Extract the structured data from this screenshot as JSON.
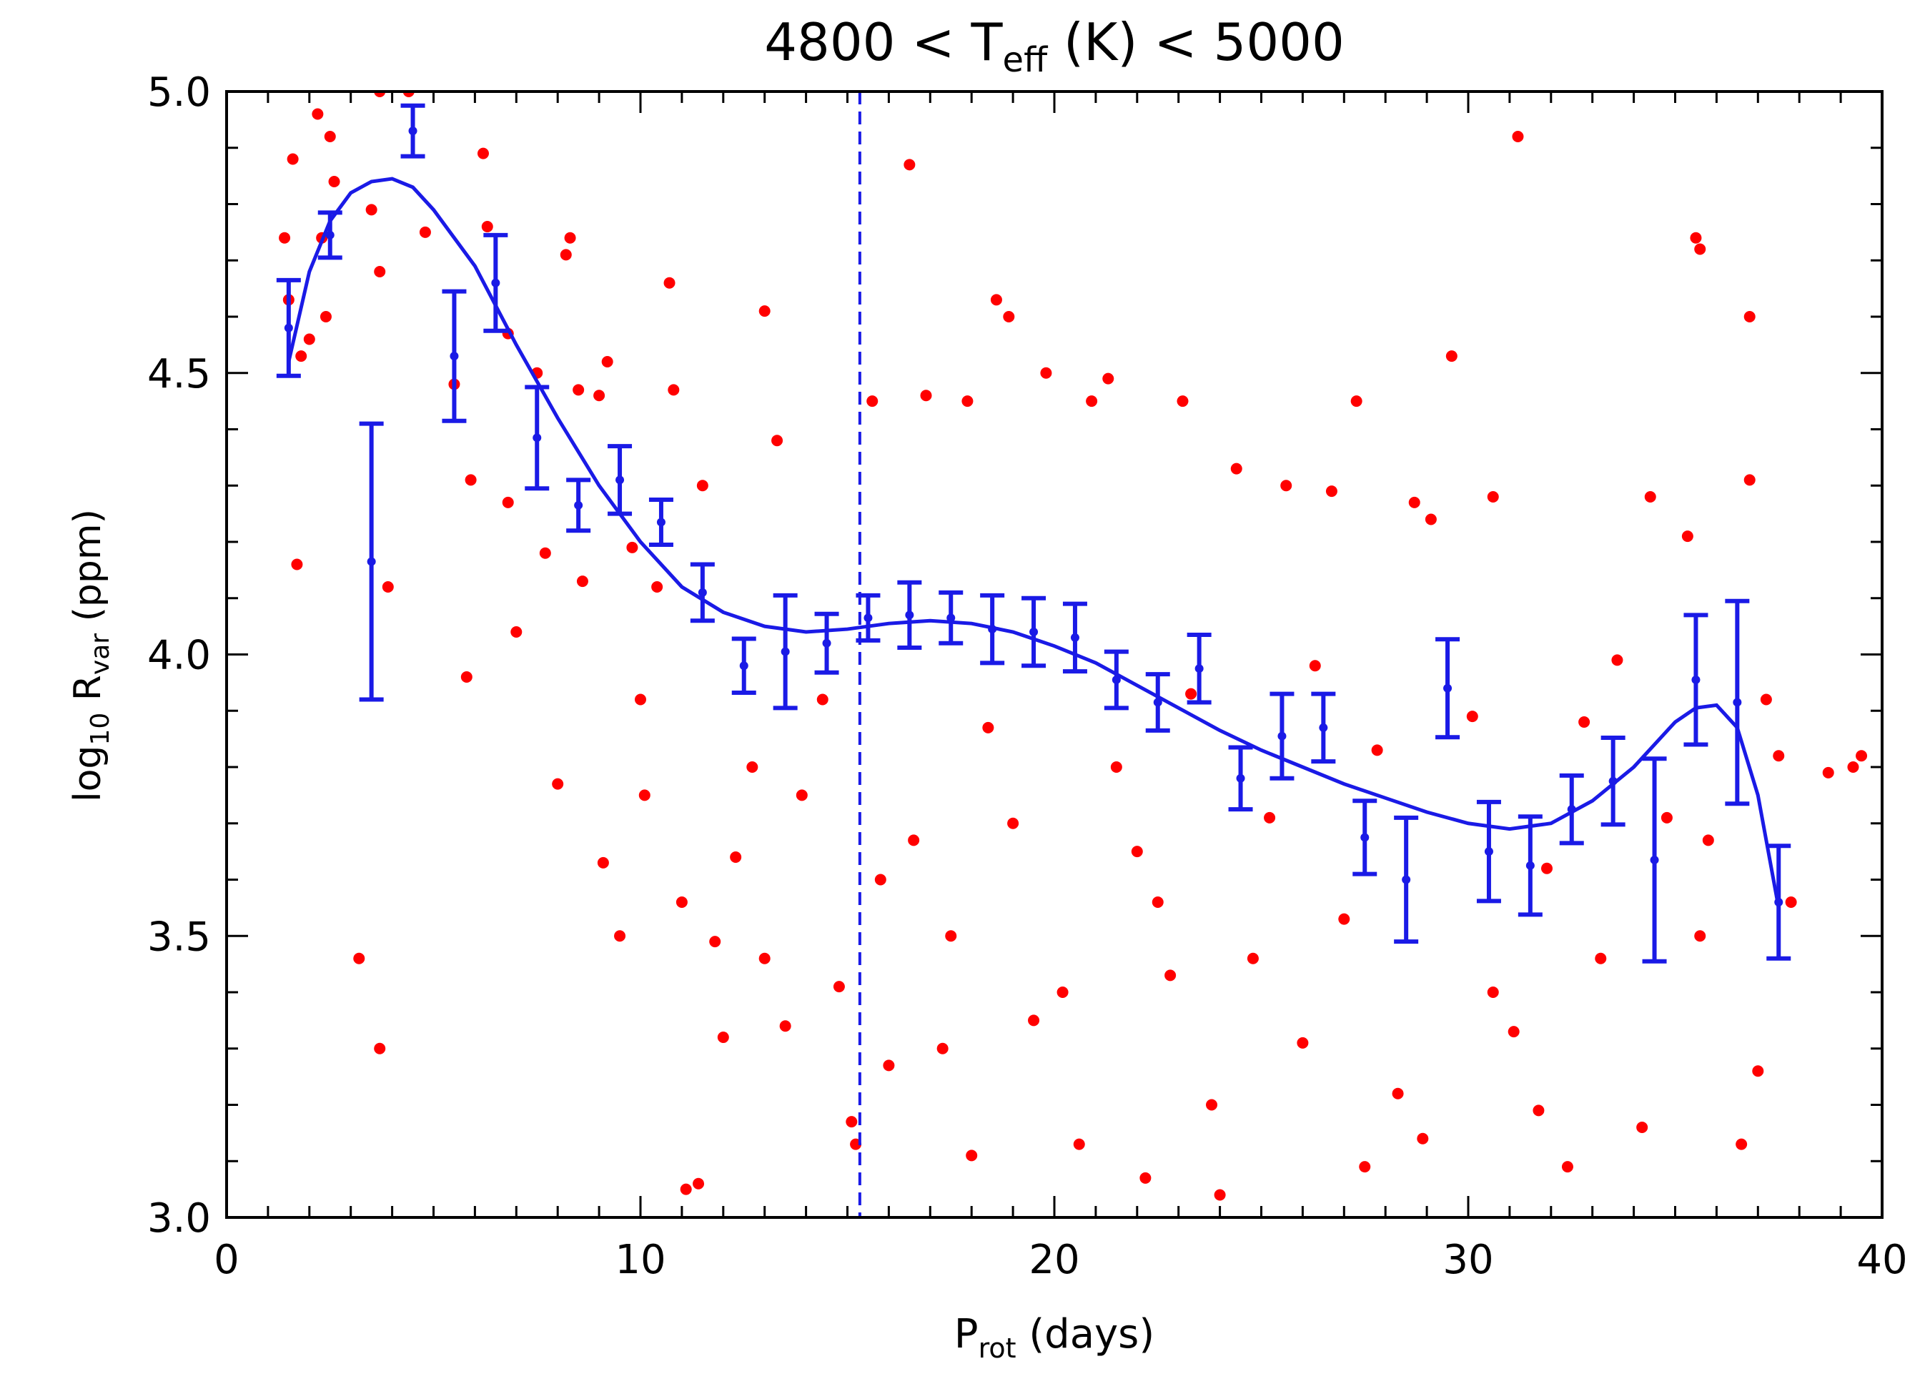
{
  "chart_data": {
    "type": "scatter",
    "title": [
      "4800 < T",
      "eff",
      " (K) < 5000"
    ],
    "xlabel": [
      "P",
      "rot",
      " (days)"
    ],
    "ylabel": [
      "log",
      "10",
      " R",
      "var",
      " (ppm)"
    ],
    "xlim": [
      0,
      40
    ],
    "ylim": [
      3,
      5
    ],
    "xticks": [
      0,
      10,
      20,
      30,
      40
    ],
    "yticks": [
      {
        "value": 3,
        "label": "3.0"
      },
      {
        "value": 3.5,
        "label": "3.5"
      },
      {
        "value": 4,
        "label": "4.0"
      },
      {
        "value": 4.5,
        "label": "4.5"
      },
      {
        "value": 5,
        "label": "5.0"
      }
    ],
    "series": [
      {
        "color": "#ff0000",
        "x": [
          1.4,
          1.5,
          1.6,
          1.7,
          1.8,
          2.0,
          2.2,
          2.3,
          2.4,
          2.5,
          2.6,
          3.2,
          3.5,
          3.7,
          3.7,
          3.7,
          3.9,
          4.4,
          4.8,
          5.5,
          5.8,
          5.9,
          6.2,
          6.3,
          6.8,
          6.8,
          7.0,
          7.5,
          7.7,
          8.0,
          8.2,
          8.3,
          8.5,
          8.6,
          9.0,
          9.1,
          9.2,
          9.5,
          9.8,
          10.0,
          10.1,
          10.4,
          10.7,
          10.8,
          11.0,
          11.1,
          11.4,
          11.5,
          11.8,
          12.0,
          12.3,
          12.7,
          13.0,
          13.0,
          13.3,
          13.5,
          13.9,
          14.4,
          14.8,
          15.1,
          15.2,
          15.6,
          15.8,
          16.0,
          16.5,
          16.6,
          16.9,
          17.3,
          17.5,
          17.9,
          18.0,
          18.4,
          18.6,
          18.9,
          19.0,
          19.5,
          19.8,
          20.2,
          20.6,
          20.9,
          21.3,
          21.5,
          22.0,
          22.2,
          22.5,
          22.8,
          23.1,
          23.3,
          23.8,
          24.0,
          24.4,
          24.8,
          25.2,
          25.6,
          26.0,
          26.3,
          26.7,
          27.0,
          27.3,
          27.5,
          27.8,
          28.3,
          28.7,
          28.9,
          29.1,
          29.6,
          30.1,
          30.6,
          30.6,
          31.1,
          31.2,
          31.7,
          31.9,
          32.4,
          32.8,
          33.2,
          33.6,
          34.2,
          34.4,
          34.8,
          35.3,
          35.5,
          35.6,
          35.6,
          35.8,
          36.6,
          36.8,
          36.8,
          37.0,
          37.2,
          37.5,
          37.8,
          38.7,
          39.3,
          39.5
        ],
        "values": [
          4.74,
          4.63,
          4.88,
          4.16,
          4.53,
          4.56,
          4.96,
          4.74,
          4.6,
          4.92,
          4.84,
          3.46,
          4.79,
          5.0,
          4.68,
          3.3,
          4.12,
          5.0,
          4.75,
          4.48,
          3.96,
          4.31,
          4.89,
          4.76,
          4.57,
          4.27,
          4.04,
          4.5,
          4.18,
          3.77,
          4.71,
          4.74,
          4.47,
          4.13,
          4.46,
          3.63,
          4.52,
          3.5,
          4.19,
          3.92,
          3.75,
          4.12,
          4.66,
          4.47,
          3.56,
          3.05,
          3.06,
          4.3,
          3.49,
          3.32,
          3.64,
          3.8,
          4.61,
          3.46,
          4.38,
          3.34,
          3.75,
          3.92,
          3.41,
          3.17,
          3.13,
          4.45,
          3.6,
          3.27,
          4.87,
          3.67,
          4.46,
          3.3,
          3.5,
          4.45,
          3.11,
          3.87,
          4.63,
          4.6,
          3.7,
          3.35,
          4.5,
          3.4,
          3.13,
          4.45,
          4.49,
          3.8,
          3.65,
          3.07,
          3.56,
          3.43,
          4.45,
          3.93,
          3.2,
          3.04,
          4.33,
          3.46,
          3.71,
          4.3,
          3.31,
          3.98,
          4.29,
          3.53,
          4.45,
          3.09,
          3.83,
          3.22,
          4.27,
          3.14,
          4.24,
          4.53,
          3.89,
          3.4,
          4.28,
          3.33,
          4.92,
          3.19,
          3.62,
          3.09,
          3.88,
          3.46,
          3.99,
          3.16,
          4.28,
          3.71,
          4.21,
          4.74,
          4.72,
          3.5,
          3.67,
          3.13,
          4.6,
          4.31,
          3.26,
          3.92,
          3.82,
          3.56,
          3.79,
          3.8,
          3.82
        ]
      }
    ],
    "binned": {
      "color": "#1a1ae6",
      "x": [
        1.5,
        2.5,
        3.5,
        4.5,
        5.5,
        6.5,
        7.5,
        8.5,
        9.5,
        10.5,
        11.5,
        12.5,
        13.5,
        14.5,
        15.5,
        16.5,
        17.5,
        18.5,
        19.5,
        20.5,
        21.5,
        22.5,
        23.5,
        24.5,
        25.5,
        26.5,
        27.5,
        28.5,
        29.5,
        30.5,
        31.5,
        32.5,
        33.5,
        34.5,
        35.5,
        36.5,
        37.5
      ],
      "values": [
        4.58,
        4.745,
        4.165,
        4.93,
        4.53,
        4.66,
        4.385,
        4.265,
        4.31,
        4.235,
        4.11,
        3.98,
        4.005,
        4.02,
        4.065,
        4.07,
        4.065,
        4.045,
        4.04,
        4.03,
        3.955,
        3.915,
        3.975,
        3.78,
        3.855,
        3.87,
        3.675,
        3.6,
        3.94,
        3.65,
        3.625,
        3.725,
        3.775,
        3.635,
        3.955,
        3.915,
        3.56
      ],
      "errors": [
        0.085,
        0.04,
        0.245,
        0.045,
        0.115,
        0.085,
        0.09,
        0.045,
        0.06,
        0.04,
        0.05,
        0.048,
        0.1,
        0.052,
        0.04,
        0.058,
        0.045,
        0.06,
        0.06,
        0.06,
        0.05,
        0.05,
        0.06,
        0.055,
        0.075,
        0.06,
        0.065,
        0.11,
        0.087,
        0.088,
        0.087,
        0.06,
        0.077,
        0.18,
        0.115,
        0.18,
        0.1
      ]
    },
    "fit": {
      "color": "#1a1ae6",
      "x": [
        1.5,
        2,
        2.5,
        3,
        3.5,
        4,
        4.5,
        5,
        6,
        7,
        8,
        9,
        10,
        11,
        12,
        13,
        14,
        15,
        16,
        17,
        18,
        19,
        20,
        21,
        22,
        23,
        24,
        25,
        26,
        27,
        28,
        29,
        30,
        31,
        32,
        33,
        34,
        35,
        35.5,
        36,
        36.5,
        37,
        37.5
      ],
      "values": [
        4.52,
        4.68,
        4.77,
        4.82,
        4.84,
        4.845,
        4.83,
        4.79,
        4.69,
        4.55,
        4.42,
        4.3,
        4.2,
        4.12,
        4.075,
        4.05,
        4.04,
        4.045,
        4.055,
        4.06,
        4.055,
        4.04,
        4.015,
        3.985,
        3.945,
        3.905,
        3.865,
        3.83,
        3.8,
        3.77,
        3.745,
        3.72,
        3.7,
        3.69,
        3.7,
        3.74,
        3.8,
        3.88,
        3.905,
        3.91,
        3.87,
        3.75,
        3.55
      ]
    },
    "vline": {
      "x": 15.3,
      "color": "#1a1ae6",
      "dashed": true
    }
  }
}
